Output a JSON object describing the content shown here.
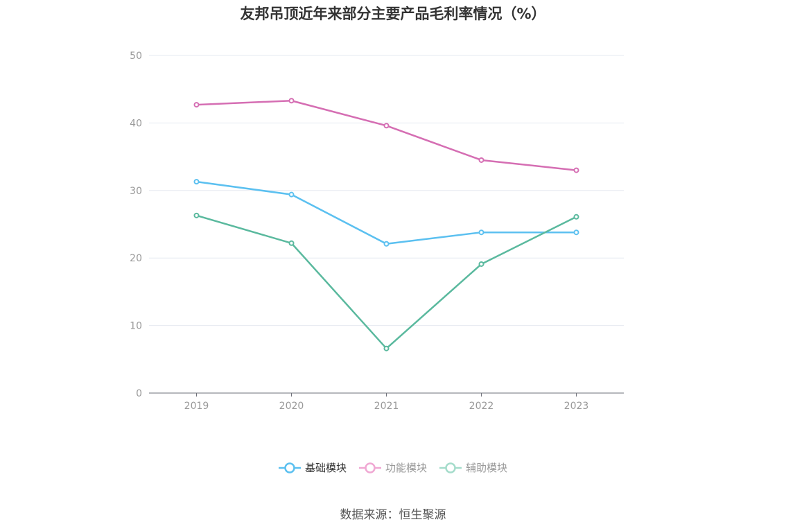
{
  "chart_data": {
    "type": "line",
    "title": "友邦吊顶近年来部分主要产品毛利率情况（%）",
    "categories": [
      "2019",
      "2020",
      "2021",
      "2022",
      "2023"
    ],
    "series": [
      {
        "name": "基础模块",
        "color": "#5bc0f0",
        "values": [
          31.3,
          29.4,
          22.1,
          23.8,
          23.8
        ]
      },
      {
        "name": "功能模块",
        "color": "#d56eb3",
        "values": [
          42.7,
          43.3,
          39.6,
          34.5,
          33.0
        ]
      },
      {
        "name": "辅助模块",
        "color": "#5ab99e",
        "values": [
          26.3,
          22.2,
          6.6,
          19.1,
          26.1
        ]
      }
    ],
    "ylim": [
      0,
      50
    ],
    "yticks": [
      0,
      10,
      20,
      30,
      40,
      50
    ],
    "grid": true,
    "legend": "bottom-center",
    "xlabel": "",
    "ylabel": ""
  },
  "legend_items": [
    {
      "name": "基础模块",
      "color": "#5bc0f0",
      "active": true
    },
    {
      "name": "功能模块",
      "color": "#f0a8d3",
      "active": false
    },
    {
      "name": "辅助模块",
      "color": "#a5dccb",
      "active": false
    }
  ],
  "source": "数据来源：恒生聚源"
}
